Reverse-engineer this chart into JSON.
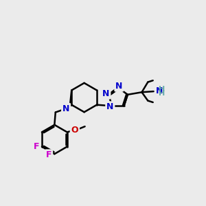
{
  "background_color": "#ebebeb",
  "bond_color": "#000000",
  "atom_colors": {
    "N": "#0000cc",
    "F": "#cc00cc",
    "O": "#cc0000",
    "NH2": "#66aaaa",
    "C": "#000000"
  },
  "bond_width": 1.8,
  "figsize": [
    3.0,
    3.0
  ],
  "dpi": 100
}
